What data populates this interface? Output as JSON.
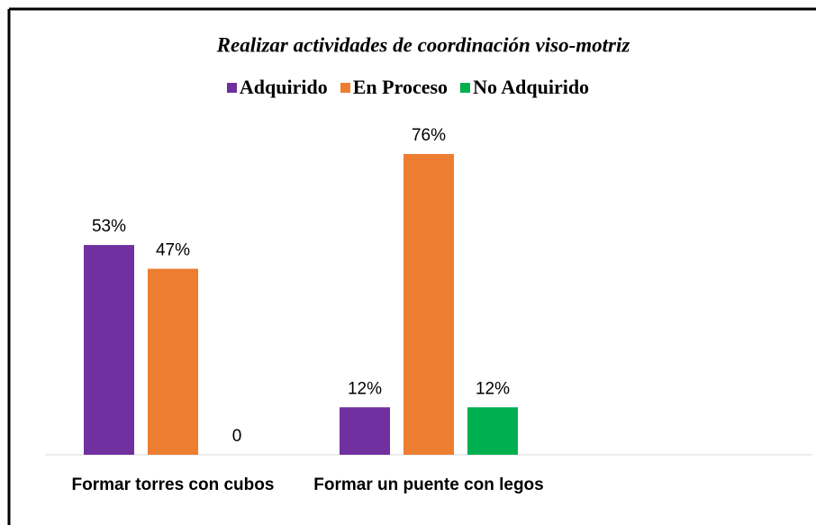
{
  "chart_data": {
    "type": "bar",
    "title": "Realizar actividades de coordinación viso-motriz",
    "categories": [
      "Formar torres con cubos",
      "Formar un puente con legos"
    ],
    "series": [
      {
        "name": "Adquirido",
        "color": "#7030a0",
        "values": [
          53,
          12
        ],
        "value_labels": [
          "53%",
          "12%"
        ]
      },
      {
        "name": "En Proceso",
        "color": "#ed7d31",
        "values": [
          47,
          76
        ],
        "value_labels": [
          "47%",
          "76%"
        ]
      },
      {
        "name": "No Adquirido",
        "color": "#00b050",
        "values": [
          0,
          12
        ],
        "value_labels": [
          "0",
          "12%"
        ]
      }
    ],
    "legend": "top"
  }
}
